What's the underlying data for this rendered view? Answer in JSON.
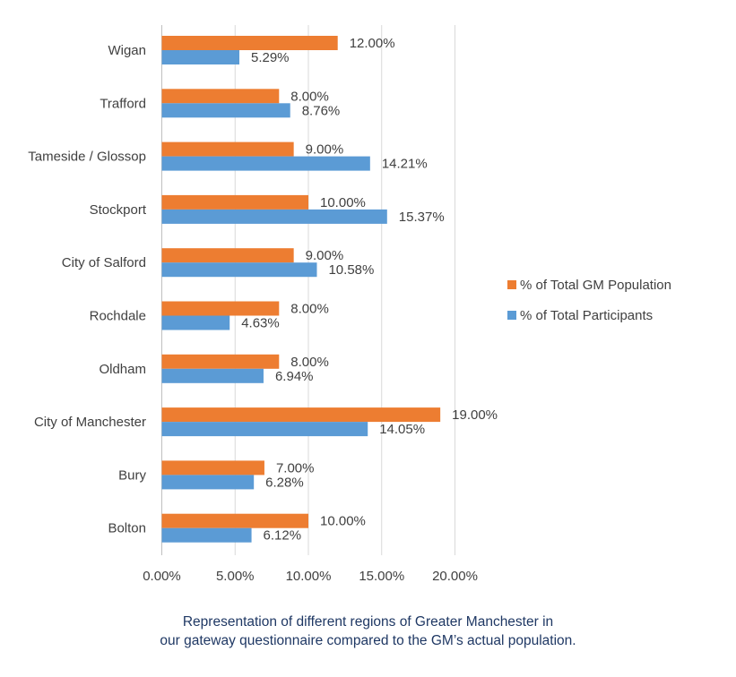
{
  "chart_data": {
    "type": "bar",
    "orientation": "horizontal",
    "categories": [
      "Wigan",
      "Trafford",
      "Tameside / Glossop",
      "Stockport",
      "City of Salford",
      "Rochdale",
      "Oldham",
      "City of Manchester",
      "Bury",
      "Bolton"
    ],
    "series": [
      {
        "name": "% of Total GM Population",
        "color": "#ed7d31",
        "values": [
          12.0,
          8.0,
          9.0,
          10.0,
          9.0,
          8.0,
          8.0,
          19.0,
          7.0,
          10.0
        ],
        "labels": [
          "12.00%",
          "8.00%",
          "9.00%",
          "10.00%",
          "9.00%",
          "8.00%",
          "8.00%",
          "19.00%",
          "7.00%",
          "10.00%"
        ]
      },
      {
        "name": "% of Total Participants",
        "color": "#5b9bd5",
        "values": [
          5.29,
          8.76,
          14.21,
          15.37,
          10.58,
          4.63,
          6.94,
          14.05,
          6.28,
          6.12
        ],
        "labels": [
          "5.29%",
          "8.76%",
          "14.21%",
          "15.37%",
          "10.58%",
          "4.63%",
          "6.94%",
          "14.05%",
          "6.28%",
          "6.12%"
        ]
      }
    ],
    "xlim": [
      0,
      20
    ],
    "xticks": [
      0,
      5,
      10,
      15,
      20
    ],
    "xtick_labels": [
      "0.00%",
      "5.00%",
      "10.00%",
      "15.00%",
      "20.00%"
    ],
    "grid": "vertical",
    "legend_position": "right",
    "caption_lines": [
      "Representation of different regions of Greater Manchester in",
      "our gateway questionnaire compared to the GM’s actual population."
    ]
  }
}
